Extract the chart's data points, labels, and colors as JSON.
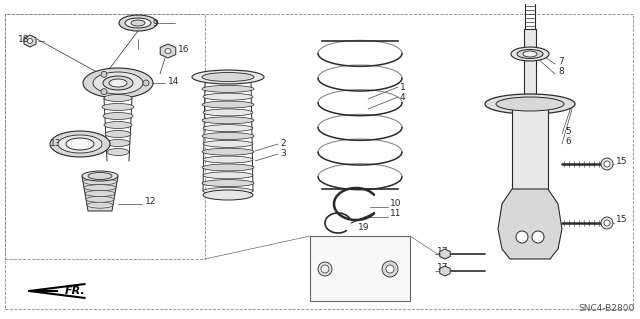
{
  "bg_color": "#ffffff",
  "fig_width": 6.4,
  "fig_height": 3.19,
  "dpi": 100,
  "watermark": "SNC4-B2800",
  "line_color": "#2a2a2a",
  "gray_fill": "#d8d8d8",
  "light_fill": "#efefef"
}
